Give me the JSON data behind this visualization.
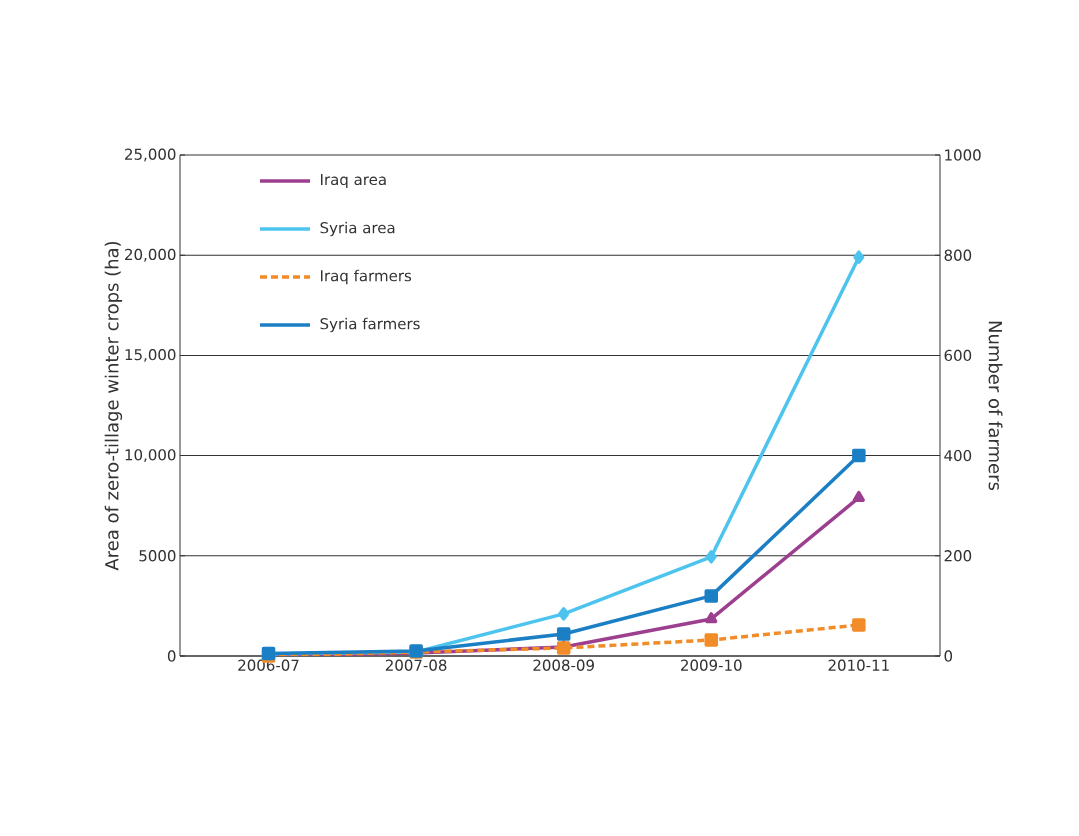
{
  "chart_data": {
    "type": "line",
    "ylabel": "Area of  zero-tillage winter crops (ha)",
    "y2label": "Number of farmers",
    "categories": [
      "2006-07",
      "2007-08",
      "2008-09",
      "2009-10",
      "2010-11"
    ],
    "series": [
      {
        "name": "Iraq area",
        "color": "#9b3f8e",
        "marker": "triangle",
        "line_style": "solid",
        "values": [
          0,
          150,
          450,
          1850,
          7900
        ]
      },
      {
        "name": "Syria area",
        "color": "#4cc4ee",
        "marker": "diamond",
        "line_style": "solid",
        "values": [
          100,
          200,
          2100,
          4950,
          19900
        ]
      },
      {
        "name": "Iraq farmers",
        "color": "#f28c28",
        "marker": "square",
        "line_style": "dashed",
        "axis": "y2",
        "values": [
          0,
          8,
          16,
          32,
          62
        ]
      },
      {
        "name": "Syria farmers",
        "color": "#1a7fc4",
        "marker": "square",
        "line_style": "solid",
        "axis": "y2",
        "values": [
          5,
          10,
          44,
          120,
          400
        ]
      }
    ],
    "ylim": [
      0,
      25000
    ],
    "yticks": [
      0,
      {
        "value": 5000,
        "label": "5000"
      },
      {
        "value": 10000,
        "label": "10,000"
      },
      {
        "value": 15000,
        "label": "15,000"
      },
      {
        "value": 20000,
        "label": "20,000"
      },
      {
        "value": 25000,
        "label": "25,000"
      }
    ],
    "y2lim": [
      0,
      1000
    ],
    "y2ticks": [
      0,
      200,
      400,
      600,
      800,
      1000
    ],
    "grid": "y",
    "legend": "top left"
  }
}
